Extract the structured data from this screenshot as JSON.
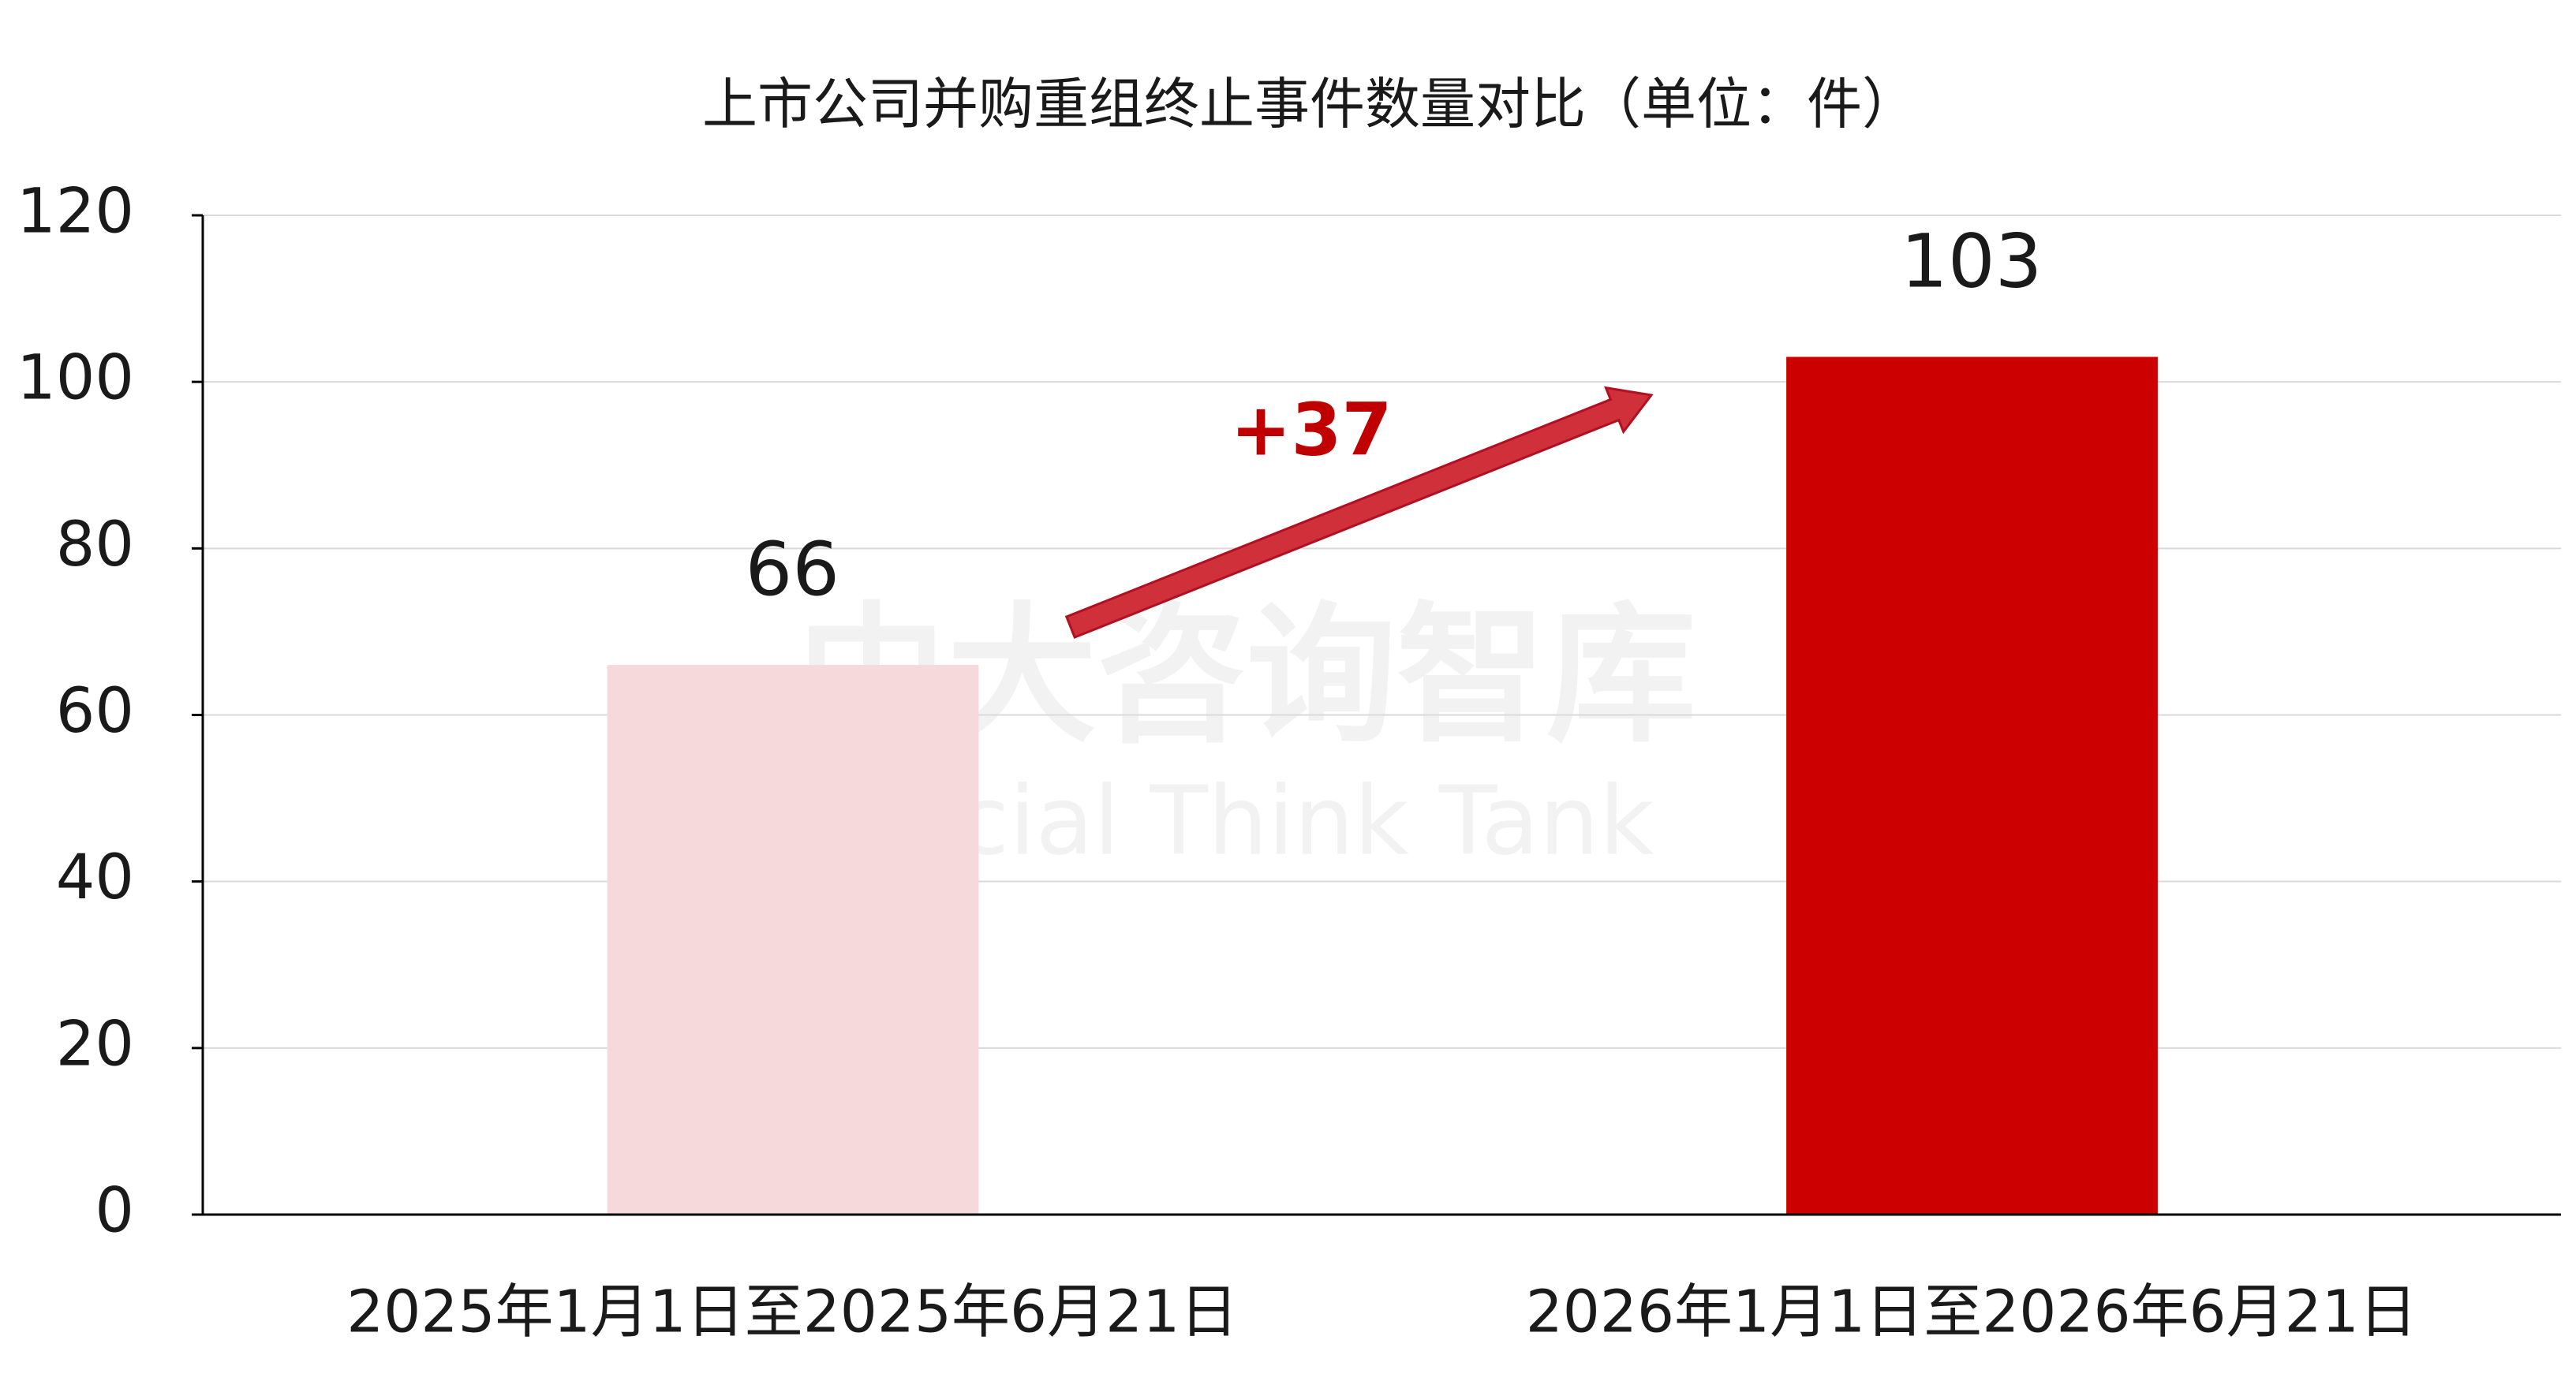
{
  "chart_data": {
    "type": "bar",
    "title": "上市公司并购重组终止事件数量对比（单位：件）",
    "categories": [
      "2025年1月1日至2025年6月21日",
      "2026年1月1日至2026年6月21日"
    ],
    "values": [
      66,
      103
    ],
    "colors": [
      "#f5d9db",
      "#cc0000"
    ],
    "ylim": [
      0,
      120
    ],
    "yticks": [
      0,
      20,
      40,
      60,
      80,
      100,
      120
    ],
    "grid": true,
    "annotation": "+37",
    "watermark": [
      "中大咨询智库",
      "Social Think Tank"
    ]
  }
}
